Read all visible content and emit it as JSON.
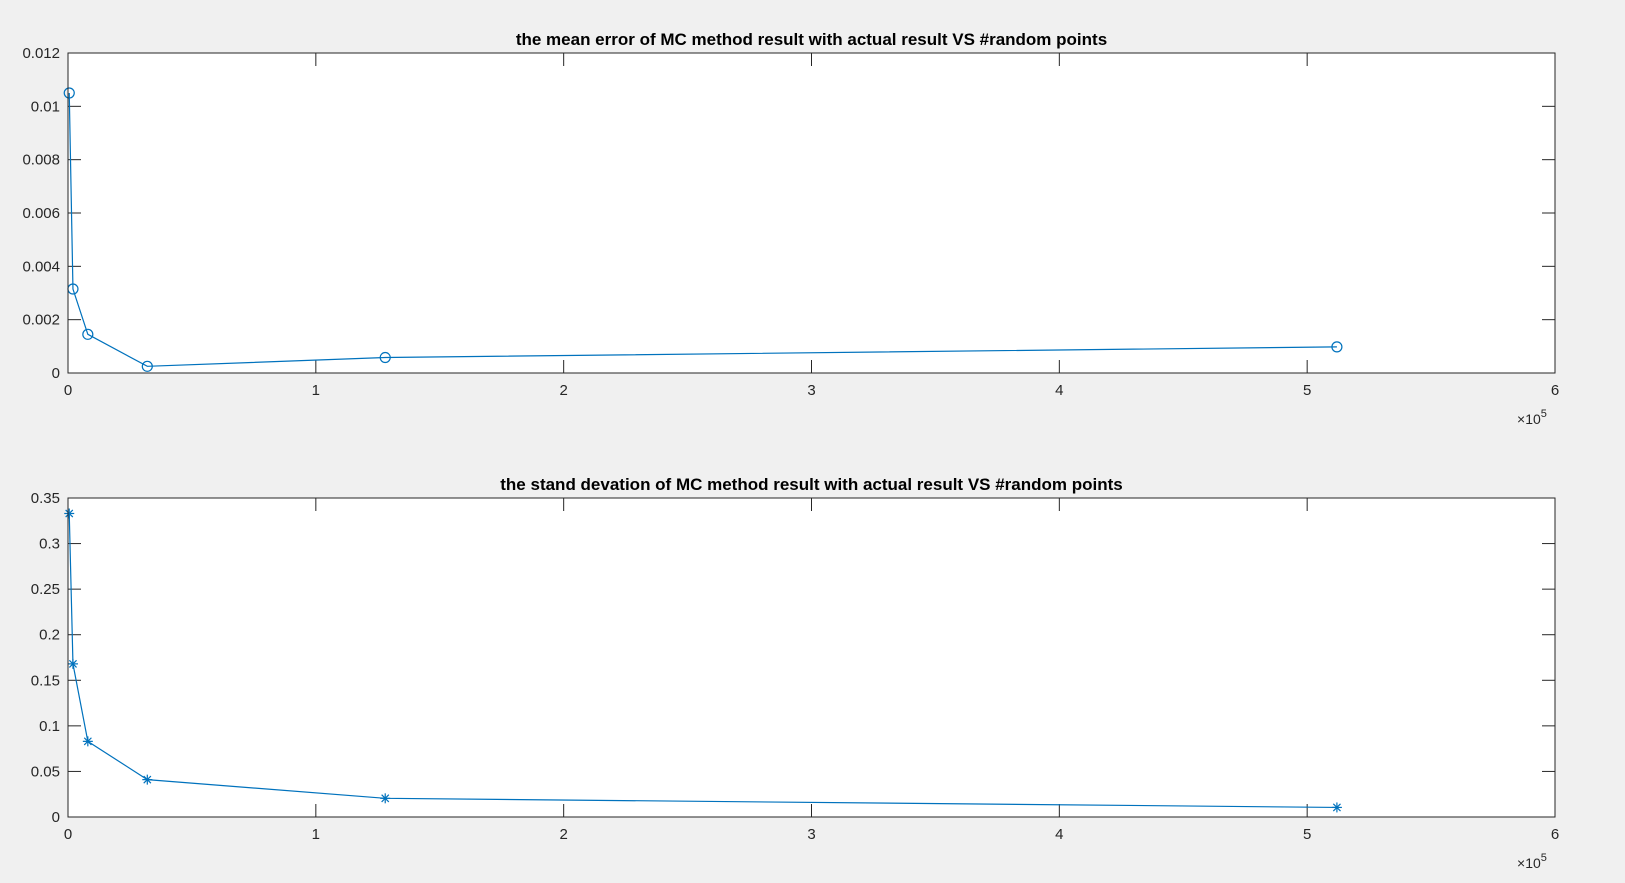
{
  "chart_data": [
    {
      "type": "line",
      "title": "the mean error of MC method result with actual result VS #random points",
      "xlabel": "",
      "ylabel": "",
      "xlim": [
        0,
        600000
      ],
      "ylim": [
        0,
        0.012
      ],
      "x_ticks": [
        0,
        100000,
        200000,
        300000,
        400000,
        500000,
        600000
      ],
      "x_tick_labels": [
        "0",
        "1",
        "2",
        "3",
        "4",
        "5",
        "6"
      ],
      "x_exponent_base": "10",
      "x_exponent_power": "5",
      "y_ticks": [
        0,
        0.002,
        0.004,
        0.006,
        0.008,
        0.01,
        0.012
      ],
      "y_tick_labels": [
        "0",
        "0.002",
        "0.004",
        "0.006",
        "0.008",
        "0.01",
        "0.012"
      ],
      "grid": false,
      "series": [
        {
          "marker": "circle",
          "color": "#0072bd",
          "x": [
            500,
            2000,
            8000,
            32000,
            128000,
            512000
          ],
          "y": [
            0.0105,
            0.00315,
            0.00145,
            0.00025,
            0.00058,
            0.00098
          ]
        }
      ]
    },
    {
      "type": "line",
      "title": "the stand devation of MC method result with actual result VS #random points",
      "xlabel": "",
      "ylabel": "",
      "xlim": [
        0,
        600000
      ],
      "ylim": [
        0,
        0.35
      ],
      "x_ticks": [
        0,
        100000,
        200000,
        300000,
        400000,
        500000,
        600000
      ],
      "x_tick_labels": [
        "0",
        "1",
        "2",
        "3",
        "4",
        "5",
        "6"
      ],
      "x_exponent_base": "10",
      "x_exponent_power": "5",
      "y_ticks": [
        0,
        0.05,
        0.1,
        0.15,
        0.2,
        0.25,
        0.3,
        0.35
      ],
      "y_tick_labels": [
        "0",
        "0.05",
        "0.1",
        "0.15",
        "0.2",
        "0.25",
        "0.3",
        "0.35"
      ],
      "grid": false,
      "series": [
        {
          "marker": "asterisk",
          "color": "#0072bd",
          "x": [
            500,
            2000,
            8000,
            32000,
            128000,
            512000
          ],
          "y": [
            0.333,
            0.168,
            0.083,
            0.041,
            0.0205,
            0.0105
          ]
        }
      ]
    }
  ]
}
